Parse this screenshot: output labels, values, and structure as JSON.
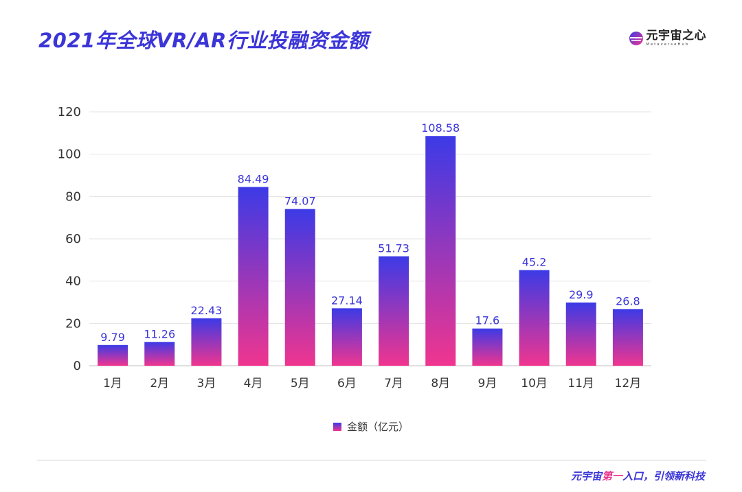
{
  "page": {
    "title": "2021年全球VR/AR行业投融资金额",
    "logo": {
      "name_cn": "元宇宙之心",
      "name_en": "MetaverseHub",
      "icon": "metaverse-hub-logo-icon"
    },
    "slogan": {
      "part1": "元宇宙",
      "part2": "第一",
      "part3": "入口，引领新科技"
    },
    "colors": {
      "accent": "#3b35d8",
      "bar_top": "#3c3ae6",
      "bar_bottom": "#f0358f",
      "highlight": "#e9368f"
    }
  },
  "chart_data": {
    "type": "bar",
    "title": "2021年全球VR/AR行业投融资金额",
    "categories": [
      "1月",
      "2月",
      "3月",
      "4月",
      "5月",
      "6月",
      "7月",
      "8月",
      "9月",
      "10月",
      "11月",
      "12月"
    ],
    "series": [
      {
        "name": "金额（亿元）",
        "values": [
          9.79,
          11.26,
          22.43,
          84.49,
          74.07,
          27.14,
          51.73,
          108.58,
          17.6,
          45.2,
          29.9,
          26.8
        ]
      }
    ],
    "ylim": [
      0,
      120
    ],
    "yticks": [
      0,
      20,
      40,
      60,
      80,
      100,
      120
    ],
    "xlabel": "",
    "ylabel": "",
    "grid": true,
    "legend": "bottom-center"
  }
}
